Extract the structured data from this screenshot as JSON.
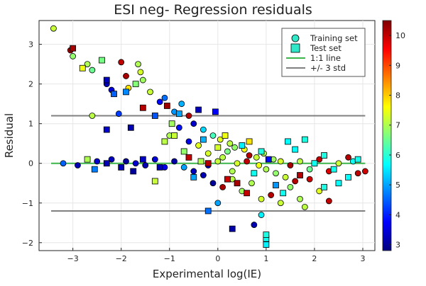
{
  "chart_data": {
    "type": "scatter",
    "title": "ESI neg- Regression residuals",
    "xlabel": "Experimental log(IE)",
    "ylabel": "Residual",
    "xlim": [
      -3.7,
      3.25
    ],
    "ylim": [
      -2.2,
      3.6
    ],
    "xticks": [
      -3,
      -2,
      -1,
      0,
      1,
      2,
      3
    ],
    "yticks": [
      -2,
      -1,
      0,
      1,
      2,
      3
    ],
    "grid": true,
    "legend_position": "top-right",
    "colorbar": {
      "min": 2.8,
      "max": 10.5,
      "ticks": [
        3,
        4,
        5,
        6,
        7,
        8,
        9,
        10
      ],
      "colormap": [
        "#00007F",
        "#0000FF",
        "#007FFF",
        "#00FFFF",
        "#7FFF7F",
        "#FFFF00",
        "#FF7F00",
        "#FF0000",
        "#7F0000"
      ]
    },
    "series": [
      {
        "name": "Training set",
        "marker": "circle",
        "points": [
          [
            -3.4,
            3.4,
            7.2
          ],
          [
            -3.0,
            2.7,
            6.8
          ],
          [
            -3.05,
            2.85,
            10.2
          ],
          [
            -2.7,
            2.5,
            7.0
          ],
          [
            -2.6,
            2.35,
            6.5
          ],
          [
            -2.3,
            2.0,
            3.2
          ],
          [
            -2.2,
            1.85,
            3.5
          ],
          [
            -2.0,
            2.55,
            10.0
          ],
          [
            -1.9,
            2.2,
            10.2
          ],
          [
            -1.85,
            1.9,
            7.8
          ],
          [
            -2.6,
            1.2,
            7.1
          ],
          [
            -2.05,
            1.25,
            4.2
          ],
          [
            -1.65,
            2.5,
            7.0
          ],
          [
            -1.6,
            2.3,
            7.3
          ],
          [
            -1.55,
            2.1,
            6.9
          ],
          [
            -1.4,
            1.8,
            7.2
          ],
          [
            -1.2,
            1.55,
            3.8
          ],
          [
            -1.1,
            1.65,
            4.6
          ],
          [
            -0.9,
            1.3,
            4.9
          ],
          [
            -0.75,
            1.5,
            5.1
          ],
          [
            -0.6,
            1.2,
            10.1
          ],
          [
            -0.5,
            1.0,
            3.4
          ],
          [
            -0.8,
            0.9,
            3.9
          ],
          [
            -1.0,
            0.7,
            7.0
          ],
          [
            -0.3,
            0.85,
            5.4
          ],
          [
            -0.1,
            0.7,
            6.2
          ],
          [
            0.05,
            0.6,
            7.4
          ],
          [
            0.25,
            0.5,
            7.1
          ],
          [
            0.35,
            0.4,
            6.8
          ],
          [
            0.55,
            0.35,
            7.5
          ],
          [
            0.65,
            0.2,
            10.1
          ],
          [
            0.8,
            0.15,
            7.2
          ],
          [
            0.95,
            0.25,
            7.0
          ],
          [
            1.15,
            0.1,
            6.9
          ],
          [
            1.3,
            0.05,
            7.3
          ],
          [
            1.5,
            -0.05,
            10.2
          ],
          [
            1.7,
            0.05,
            7.1
          ],
          [
            1.9,
            -0.15,
            6.5
          ],
          [
            2.1,
            0.1,
            10.0
          ],
          [
            2.3,
            -0.2,
            9.8
          ],
          [
            2.5,
            0.0,
            7.2
          ],
          [
            2.7,
            0.15,
            10.1
          ],
          [
            2.9,
            -0.25,
            10.0
          ],
          [
            3.05,
            -0.2,
            9.9
          ],
          [
            2.8,
            0.05,
            5.8
          ],
          [
            -3.2,
            0.0,
            4.5
          ],
          [
            -2.9,
            -0.05,
            3.2
          ],
          [
            -2.5,
            0.05,
            3.4
          ],
          [
            -2.2,
            0.1,
            3.3
          ],
          [
            -1.9,
            0.05,
            3.0
          ],
          [
            -1.7,
            0.0,
            3.4
          ],
          [
            -1.5,
            -0.05,
            3.2
          ],
          [
            -1.3,
            0.1,
            3.5
          ],
          [
            -1.1,
            -0.1,
            3.6
          ],
          [
            -0.9,
            0.05,
            3.1
          ],
          [
            -0.7,
            -0.1,
            5.0
          ],
          [
            -0.5,
            -0.2,
            3.3
          ],
          [
            -0.3,
            -0.3,
            3.2
          ],
          [
            -0.1,
            -0.5,
            3.0
          ],
          [
            0.1,
            -0.6,
            10.2
          ],
          [
            0.3,
            -0.4,
            7.1
          ],
          [
            0.5,
            -0.7,
            6.9
          ],
          [
            0.7,
            -0.5,
            7.0
          ],
          [
            0.9,
            -0.9,
            7.3
          ],
          [
            1.1,
            -0.8,
            10.1
          ],
          [
            1.3,
            -1.0,
            7.2
          ],
          [
            1.5,
            -0.6,
            6.8
          ],
          [
            1.7,
            -0.9,
            7.0
          ],
          [
            1.9,
            -0.4,
            9.9
          ],
          [
            2.1,
            -0.7,
            7.4
          ],
          [
            0.75,
            -1.55,
            3.2
          ],
          [
            0.9,
            -1.3,
            5.6
          ],
          [
            1.8,
            -1.1,
            7.1
          ],
          [
            2.3,
            -0.95,
            10.0
          ],
          [
            0.0,
            -1.0,
            5.0
          ],
          [
            -0.2,
            0.25,
            7.3
          ],
          [
            0.1,
            0.15,
            7.1
          ],
          [
            0.2,
            0.3,
            6.6
          ],
          [
            0.4,
            0.0,
            7.3
          ],
          [
            0.6,
            0.05,
            10.0
          ],
          [
            0.85,
            -0.05,
            7.5
          ],
          [
            1.0,
            -0.15,
            7.0
          ],
          [
            1.2,
            -0.25,
            6.8
          ],
          [
            1.4,
            -0.35,
            7.2
          ],
          [
            1.6,
            -0.45,
            10.1
          ],
          [
            -0.4,
            0.45,
            7.4
          ],
          [
            -0.6,
            0.55,
            3.6
          ],
          [
            -0.2,
            -0.05,
            3.4
          ],
          [
            0.0,
            0.05,
            7.2
          ],
          [
            0.3,
            -0.2,
            7.0
          ]
        ]
      },
      {
        "name": "Test set",
        "marker": "square",
        "points": [
          [
            -3.0,
            2.9,
            10.2
          ],
          [
            -2.8,
            2.4,
            7.5
          ],
          [
            -2.4,
            2.6,
            6.6
          ],
          [
            -2.3,
            2.1,
            3.3
          ],
          [
            -2.15,
            1.75,
            4.5
          ],
          [
            -1.9,
            1.8,
            4.8
          ],
          [
            -1.55,
            1.4,
            10.1
          ],
          [
            -1.7,
            2.0,
            6.7
          ],
          [
            -1.3,
            1.2,
            4.4
          ],
          [
            -1.05,
            1.45,
            10.3
          ],
          [
            -0.95,
            1.0,
            6.9
          ],
          [
            -0.05,
            1.3,
            3.7
          ],
          [
            -0.8,
            1.25,
            5.0
          ],
          [
            -0.4,
            1.35,
            3.2
          ],
          [
            -2.3,
            0.85,
            3.4
          ],
          [
            -1.8,
            0.9,
            3.2
          ],
          [
            -2.3,
            0.0,
            3.2
          ],
          [
            -2.0,
            -0.1,
            3.3
          ],
          [
            -1.75,
            -0.2,
            3.0
          ],
          [
            -1.3,
            -0.45,
            7.2
          ],
          [
            -1.55,
            0.1,
            3.3
          ],
          [
            -2.55,
            -0.15,
            4.7
          ],
          [
            -2.7,
            0.1,
            7.0
          ],
          [
            -0.2,
            -1.2,
            4.6
          ],
          [
            0.3,
            -1.65,
            3.1
          ],
          [
            1.0,
            -1.9,
            5.8
          ],
          [
            1.0,
            -2.05,
            5.6
          ],
          [
            1.0,
            -1.8,
            5.9
          ],
          [
            2.4,
            -0.15,
            5.8
          ],
          [
            2.7,
            -0.35,
            5.7
          ],
          [
            2.2,
            -0.6,
            5.9
          ],
          [
            2.9,
            0.1,
            5.8
          ],
          [
            1.8,
            0.6,
            5.9
          ],
          [
            1.6,
            0.35,
            5.7
          ],
          [
            1.35,
            -0.75,
            5.8
          ],
          [
            0.5,
            0.45,
            5.6
          ],
          [
            0.75,
            -0.25,
            5.8
          ],
          [
            0.9,
            0.3,
            5.9
          ],
          [
            1.45,
            0.55,
            5.7
          ],
          [
            2.0,
            0.0,
            5.8
          ],
          [
            0.4,
            -0.5,
            10.2
          ],
          [
            0.6,
            -0.75,
            10.0
          ],
          [
            0.2,
            -0.4,
            9.9
          ],
          [
            -0.2,
            0.0,
            10.1
          ],
          [
            -0.35,
            0.05,
            7.0
          ],
          [
            -0.7,
            0.3,
            6.8
          ],
          [
            -0.9,
            0.7,
            7.2
          ],
          [
            -1.1,
            0.55,
            7.1
          ],
          [
            0.0,
            0.4,
            7.3
          ],
          [
            0.15,
            0.7,
            7.5
          ],
          [
            1.2,
            -0.55,
            4.9
          ],
          [
            -0.5,
            -0.35,
            5.0
          ],
          [
            -0.3,
            0.6,
            5.1
          ],
          [
            1.7,
            -0.3,
            10.1
          ],
          [
            2.5,
            -0.5,
            5.7
          ],
          [
            0.65,
            0.55,
            7.8
          ],
          [
            1.05,
            0.1,
            3.8
          ],
          [
            -1.2,
            -0.1,
            3.2
          ],
          [
            -0.6,
            0.15,
            10.0
          ],
          [
            2.2,
            0.2,
            5.9
          ]
        ]
      }
    ],
    "reference_lines": [
      {
        "name": "1:1 line",
        "y": 0,
        "color": "#3cb54a"
      },
      {
        "name": "+/- 3 std",
        "y": [
          1.2,
          -1.2
        ],
        "color": "#808080"
      }
    ]
  }
}
